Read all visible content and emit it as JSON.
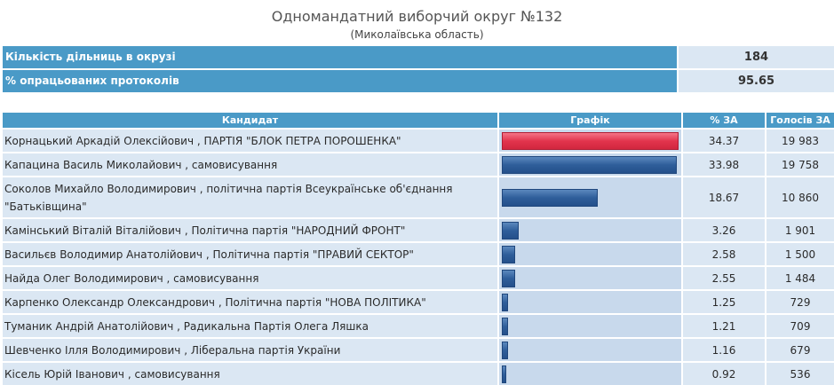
{
  "header": {
    "title": "Одномандатний виборчий округ №132",
    "subtitle": "(Миколаївська область)"
  },
  "summary": [
    {
      "label": "Кількість дільниць в окрузі",
      "value": "184"
    },
    {
      "label": "% опрацьованих протоколів",
      "value": "95.65"
    }
  ],
  "table": {
    "headers": {
      "candidate": "Кандидат",
      "chart": "Графік",
      "percent": "% ЗА",
      "votes": "Голосів ЗА"
    }
  },
  "colors": {
    "accent": "#4a9ac7",
    "leader_bar": "#e2344d",
    "bar": "#2f5e9a",
    "cell_bg": "#dbe7f3"
  },
  "candidates": [
    {
      "name": "Корнацький Аркадій Олексійович",
      "party": ", ПАРТІЯ \"БЛОК ПЕТРА ПОРОШЕНКА\"",
      "percent": "34.37",
      "votes": "19 983",
      "share": 34.37
    },
    {
      "name": "Капацина Василь Миколайович",
      "party": ", самовисування",
      "percent": "33.98",
      "votes": "19 758",
      "share": 33.98
    },
    {
      "name": "Соколов Михайло Володимирович",
      "party": ", політична партія Всеукраїнське об'єднання \"Батьківщина\"",
      "percent": "18.67",
      "votes": "10 860",
      "share": 18.67
    },
    {
      "name": "Камінський Віталій Віталійович",
      "party": ", Політична партія \"НАРОДНИЙ ФРОНТ\"",
      "percent": "3.26",
      "votes": "1 901",
      "share": 3.26
    },
    {
      "name": "Васильєв Володимир Анатолійович",
      "party": ", Політична партія \"ПРАВИЙ СЕКТОР\"",
      "percent": "2.58",
      "votes": "1 500",
      "share": 2.58
    },
    {
      "name": "Найда Олег Володимирович",
      "party": ", самовисування",
      "percent": "2.55",
      "votes": "1 484",
      "share": 2.55
    },
    {
      "name": "Карпенко Олександр Олександрович",
      "party": ", Політична партія \"НОВА ПОЛІТИКА\"",
      "percent": "1.25",
      "votes": "729",
      "share": 1.25
    },
    {
      "name": "Туманик Андрій Анатолійович",
      "party": ", Радикальна Партія Олега Ляшка",
      "percent": "1.21",
      "votes": "709",
      "share": 1.21
    },
    {
      "name": "Шевченко Ілля Володимирович",
      "party": ", Ліберальна партія України",
      "percent": "1.16",
      "votes": "679",
      "share": 1.16
    },
    {
      "name": "Кісель Юрій Іванович",
      "party": ", самовисування",
      "percent": "0.92",
      "votes": "536",
      "share": 0.92
    }
  ]
}
